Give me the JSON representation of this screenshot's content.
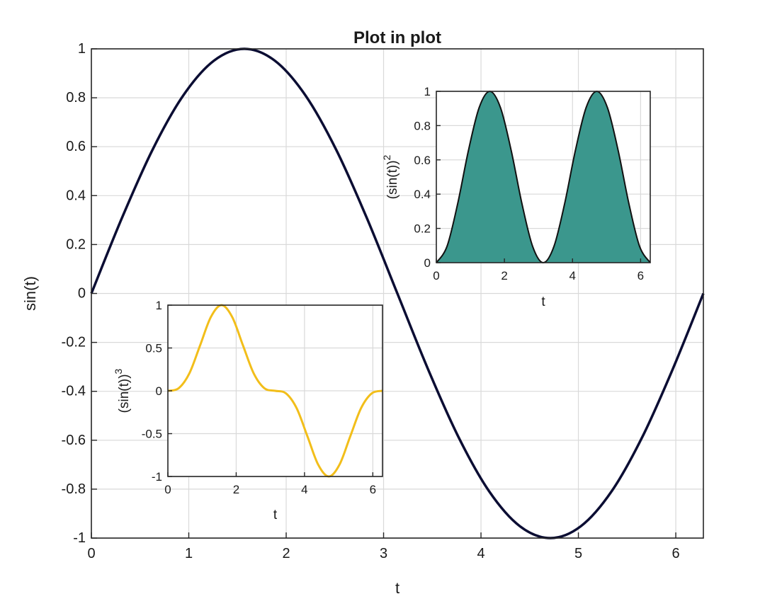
{
  "chart_data": [
    {
      "id": "main",
      "type": "line",
      "title": "Plot in plot",
      "xlabel": "t",
      "ylabel": "sin(t)",
      "xlim": [
        0,
        6.2832
      ],
      "ylim": [
        -1,
        1
      ],
      "xticks": [
        "0",
        "1",
        "2",
        "3",
        "4",
        "5",
        "6"
      ],
      "yticks": [
        "-1",
        "-0.8",
        "-0.6",
        "-0.4",
        "-0.2",
        "0",
        "0.2",
        "0.4",
        "0.6",
        "0.8",
        "1"
      ],
      "grid": true,
      "series": [
        {
          "color": "#0b0d33",
          "x": [
            0,
            0.3142,
            0.6283,
            0.9425,
            1.2566,
            1.5708,
            1.885,
            2.1991,
            2.5133,
            2.8274,
            3.1416,
            3.4558,
            3.7699,
            4.0841,
            4.3982,
            4.7124,
            5.0265,
            5.3407,
            5.6549,
            5.969,
            6.2832
          ],
          "y": [
            0,
            0.309,
            0.5878,
            0.809,
            0.9511,
            1,
            0.9511,
            0.809,
            0.5878,
            0.309,
            0,
            -0.309,
            -0.5878,
            -0.809,
            -0.9511,
            -1,
            -0.9511,
            -0.809,
            -0.5878,
            -0.309,
            0
          ]
        }
      ]
    },
    {
      "id": "inset-squared",
      "type": "area",
      "title": "",
      "xlabel": "t",
      "ylabel": "(sin(t))",
      "ylabel_superscript": "2",
      "xlim": [
        0,
        6.2832
      ],
      "ylim": [
        0,
        1
      ],
      "xticks": [
        "0",
        "2",
        "4",
        "6"
      ],
      "yticks": [
        "0",
        "0.2",
        "0.4",
        "0.6",
        "0.8",
        "1"
      ],
      "grid": true,
      "series": [
        {
          "color": "#3b978d",
          "x": [
            0,
            0.3142,
            0.6283,
            0.9425,
            1.2566,
            1.5708,
            1.885,
            2.1991,
            2.5133,
            2.8274,
            3.1416,
            3.4558,
            3.7699,
            4.0841,
            4.3982,
            4.7124,
            5.0265,
            5.3407,
            5.6549,
            5.969,
            6.2832
          ],
          "y": [
            0,
            0.0955,
            0.3455,
            0.6545,
            0.9045,
            1,
            0.9045,
            0.6545,
            0.3455,
            0.0955,
            0,
            0.0955,
            0.3455,
            0.6545,
            0.9045,
            1,
            0.9045,
            0.6545,
            0.3455,
            0.0955,
            0
          ]
        }
      ]
    },
    {
      "id": "inset-cubed",
      "type": "line",
      "title": "",
      "xlabel": "t",
      "ylabel": "(sin(t))",
      "ylabel_superscript": "3",
      "xlim": [
        0,
        6.2832
      ],
      "ylim": [
        -1,
        1
      ],
      "xticks": [
        "0",
        "2",
        "4",
        "6"
      ],
      "yticks": [
        "-1",
        "-0.5",
        "0",
        "0.5",
        "1"
      ],
      "grid": true,
      "series": [
        {
          "color": "#f2be1a",
          "x": [
            0,
            0.3142,
            0.6283,
            0.9425,
            1.2566,
            1.5708,
            1.885,
            2.1991,
            2.5133,
            2.8274,
            3.1416,
            3.4558,
            3.7699,
            4.0841,
            4.3982,
            4.7124,
            5.0265,
            5.3407,
            5.6549,
            5.969,
            6.2832
          ],
          "y": [
            0,
            0.0295,
            0.2031,
            0.5295,
            0.8602,
            1,
            0.8602,
            0.5295,
            0.2031,
            0.0295,
            0,
            -0.0295,
            -0.2031,
            -0.5295,
            -0.8602,
            -1,
            -0.8602,
            -0.5295,
            -0.2031,
            -0.0295,
            0
          ]
        }
      ]
    }
  ]
}
